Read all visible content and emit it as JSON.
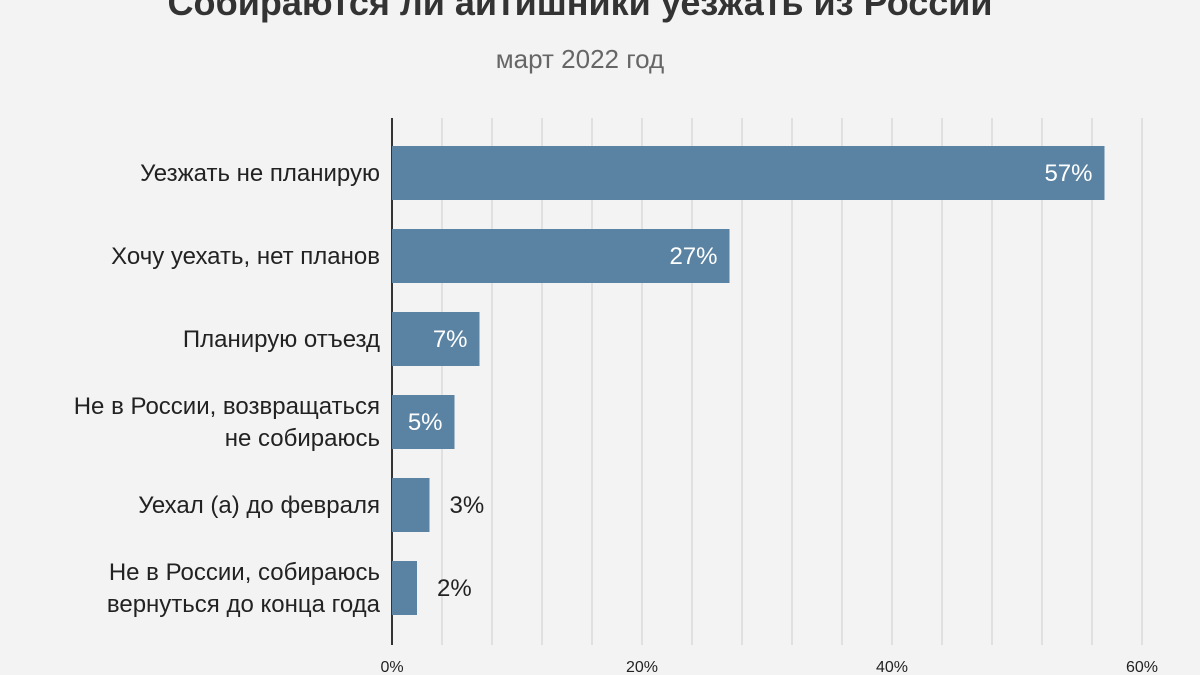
{
  "chart_data": {
    "type": "bar",
    "orientation": "horizontal",
    "title": "Собираются ли айтишники уезжать из России",
    "subtitle": "март 2022 год",
    "categories": [
      [
        "Уезжать не планирую"
      ],
      [
        "Хочу уехать, нет планов"
      ],
      [
        "Планирую отъезд"
      ],
      [
        "Не в России, возвращаться",
        "не собираюсь"
      ],
      [
        "Уехал (а) до февраля"
      ],
      [
        "Не в России, собираюсь",
        "вернуться до конца года"
      ]
    ],
    "values": [
      57,
      27,
      7,
      5,
      3,
      2
    ],
    "value_labels": [
      "57%",
      "27%",
      "7%",
      "5%",
      "3%",
      "2%"
    ],
    "xlim": [
      0,
      60
    ],
    "x_ticks": [
      0,
      20,
      40,
      60
    ],
    "x_tick_labels": [
      "0%",
      "20%",
      "40%",
      "60%"
    ],
    "grid": true,
    "colors": {
      "bar": "#5a83a3",
      "inside_label": "#ffffff",
      "outside_label": "#222222",
      "grid": "#d9d9d9",
      "axis": "#333333",
      "category_label": "#222222"
    }
  }
}
